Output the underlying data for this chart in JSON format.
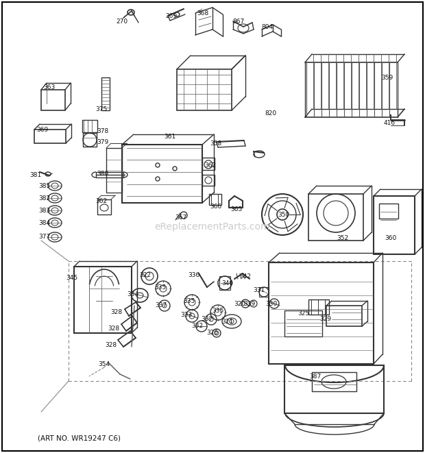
{
  "art_no": "(ART NO. WR19247 C6)",
  "watermark": "eReplacementParts.com",
  "background_color": "#ffffff",
  "border_color": "#000000",
  "text_color": "#111111",
  "fig_width": 6.2,
  "fig_height": 6.61,
  "dpi": 100
}
